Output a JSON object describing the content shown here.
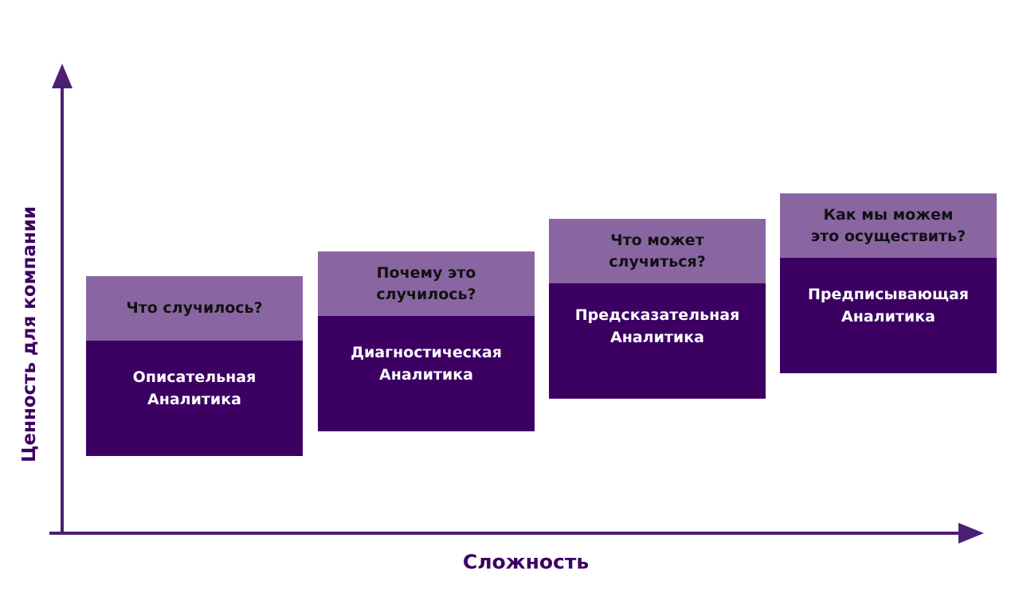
{
  "axes": {
    "y_label": "Ценность для компании",
    "x_label": "Сложность"
  },
  "colors": {
    "question_band": "#8966a2",
    "type_band": "#3c0063",
    "axis": "#4b1f73"
  },
  "stages": [
    {
      "question": "Что случилось?",
      "type": "Описательная\nАналитика"
    },
    {
      "question": "Почему это\nслучилось?",
      "type": "Диагностическая\nАналитика"
    },
    {
      "question": "Что может\nслучиться?",
      "type": "Предсказательная\nАналитика"
    },
    {
      "question": "Как мы можем\nэто осуществить?",
      "type": "Предписывающая\nАналитика"
    }
  ]
}
